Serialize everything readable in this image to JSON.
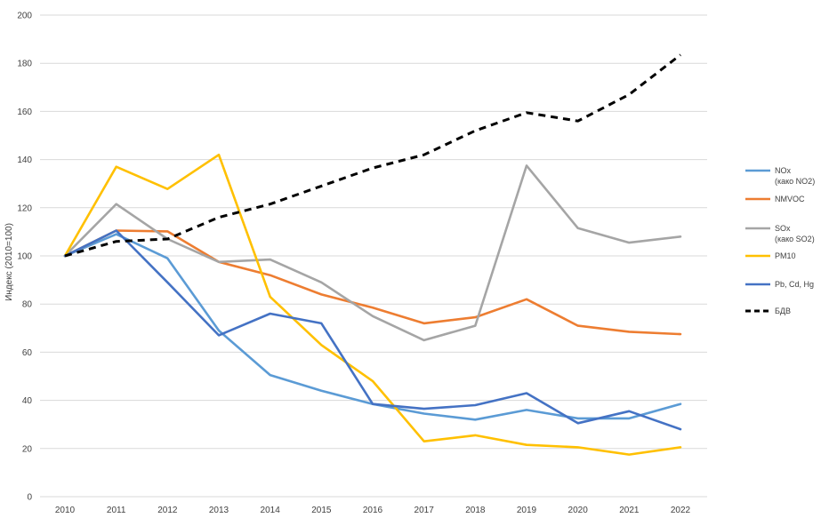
{
  "chart_data": {
    "type": "line",
    "title": "",
    "xlabel": "",
    "ylabel": "Индекс (2010=100)",
    "ylim": [
      0,
      200
    ],
    "yticks": [
      0,
      20,
      40,
      60,
      80,
      100,
      120,
      140,
      160,
      180,
      200
    ],
    "grid": "horizontal",
    "legend_position": "right",
    "x": [
      "2010",
      "2011",
      "2012",
      "2013",
      "2014",
      "2015",
      "2016",
      "2017",
      "2018",
      "2019",
      "2020",
      "2021",
      "2022"
    ],
    "series": [
      {
        "name": "NOx",
        "name_line2": "(како NO2)",
        "color": "#5b9bd5",
        "dash": "solid",
        "values": [
          100,
          109,
          99,
          69,
          50.5,
          44,
          38.5,
          34.5,
          32,
          36,
          32.5,
          32.5,
          38.5
        ]
      },
      {
        "name": "NMVOC",
        "name_line2": "",
        "color": "#ed7d31",
        "dash": "solid",
        "values": [
          100,
          110.5,
          110.2,
          97.5,
          92,
          84,
          78.5,
          72,
          74.5,
          82,
          71,
          68.5,
          67.5
        ]
      },
      {
        "name": "SOx",
        "name_line2": "(како SO2)",
        "color": "#a5a5a5",
        "dash": "solid",
        "values": [
          100,
          121.5,
          107,
          97.5,
          98.5,
          89,
          75,
          65,
          71,
          137.5,
          111.5,
          105.5,
          108
        ]
      },
      {
        "name": "PM10",
        "name_line2": "",
        "color": "#ffc000",
        "dash": "solid",
        "values": [
          100,
          137,
          127.8,
          142,
          83,
          63,
          48,
          23,
          25.5,
          21.5,
          20.5,
          17.5,
          20.5
        ]
      },
      {
        "name": "Pb, Cd, Hg",
        "name_line2": "",
        "color": "#4472c4",
        "dash": "solid",
        "values": [
          100,
          110.5,
          89,
          67,
          76,
          72,
          38.5,
          36.5,
          38,
          43,
          30.5,
          35.5,
          28
        ]
      },
      {
        "name": "БДВ",
        "name_line2": "",
        "color": "#000000",
        "dash": "dashed",
        "values": [
          100,
          106,
          107,
          116,
          121.5,
          129,
          136.5,
          142,
          152,
          159.5,
          156,
          167,
          183.5
        ]
      }
    ]
  }
}
